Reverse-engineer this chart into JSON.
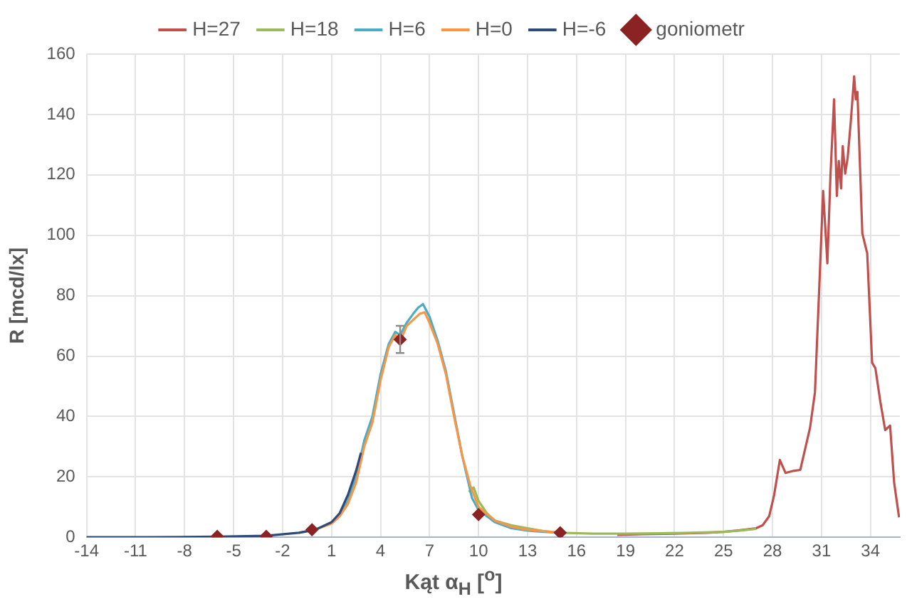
{
  "chart_data": {
    "type": "line",
    "xlabel": "Kąt α$_{H}$ [$^{o}$]",
    "ylabel": "R [mcd/lx]",
    "xlim": [
      -14,
      35.8
    ],
    "xticks": [
      -14,
      -11,
      -8,
      -5,
      -2,
      1,
      4,
      7,
      10,
      13,
      16,
      19,
      22,
      25,
      28,
      31,
      34
    ],
    "ylim": [
      0,
      160
    ],
    "yticks": [
      0,
      20,
      40,
      60,
      80,
      100,
      120,
      140,
      160
    ],
    "grid": true,
    "legend": "top",
    "marker": "none",
    "line_style": "solid",
    "series": [
      {
        "name": "H=27",
        "color": "#c0504d",
        "x": [
          18.5,
          20,
          22,
          24,
          25,
          26,
          27,
          27.4,
          27.8,
          28.1,
          28.45,
          28.8,
          29.3,
          29.7,
          30.3,
          30.6,
          30.85,
          31.1,
          31.36,
          31.55,
          31.77,
          31.94,
          32.06,
          32.2,
          32.3,
          32.45,
          32.6,
          32.8,
          33.0,
          33.1,
          33.2,
          33.5,
          33.8,
          34.1,
          34.3,
          34.6,
          34.9,
          35.2,
          35.45,
          35.75
        ],
        "values": [
          0.8,
          1,
          1.2,
          1.5,
          1.8,
          2.3,
          3,
          4,
          7,
          14,
          25.6,
          21.3,
          22,
          22.3,
          36.3,
          48,
          81,
          114.7,
          90.7,
          120,
          145,
          113,
          124.6,
          115.5,
          129.5,
          120.4,
          125.5,
          138,
          152.6,
          145,
          147.5,
          100.6,
          94,
          57.8,
          56,
          45,
          35.5,
          37,
          18,
          6.6
        ]
      },
      {
        "name": "H=18",
        "color": "#9bbb59",
        "x": [
          9.4,
          9.7,
          10,
          10.5,
          11,
          12,
          13,
          14,
          15,
          17,
          19,
          21,
          23,
          25,
          26,
          27
        ],
        "values": [
          15,
          16.5,
          12,
          8,
          5.5,
          4,
          3,
          2,
          1.5,
          1.2,
          1.2,
          1.3,
          1.5,
          1.8,
          2.2,
          2.8
        ]
      },
      {
        "name": "H=6",
        "color": "#4bacc6",
        "x": [
          1,
          1.5,
          2,
          2.5,
          3,
          3.5,
          4,
          4.5,
          4.9,
          5.2,
          5.6,
          6,
          6.3,
          6.6,
          7,
          7.5,
          8,
          8.5,
          9,
          9.3,
          9.6,
          10,
          11,
          12,
          13,
          14,
          15
        ],
        "values": [
          5,
          7.5,
          12,
          20,
          32,
          40,
          54,
          64,
          68,
          67,
          71,
          74,
          76,
          77.2,
          73,
          65,
          55,
          41,
          27,
          20,
          13,
          9,
          5,
          3,
          2.2,
          1.8,
          1.5
        ]
      },
      {
        "name": "H=0",
        "color": "#f79646",
        "x": [
          -1,
          0,
          1,
          1.5,
          2,
          2.5,
          3,
          3.5,
          4,
          4.5,
          4.9,
          5.2,
          5.6,
          6,
          6.4,
          6.7,
          7,
          7.5,
          8,
          8.5,
          9,
          9.5,
          10,
          11,
          12,
          13,
          14,
          15
        ],
        "values": [
          1.5,
          2.5,
          4.5,
          7,
          11,
          18,
          30,
          38,
          52,
          63,
          67,
          65,
          70,
          72,
          74,
          74.5,
          71,
          64,
          54,
          40,
          27,
          17,
          10,
          5.5,
          3.5,
          2.5,
          2,
          1.5
        ]
      },
      {
        "name": "H=-6",
        "color": "#2e4a7a",
        "x": [
          -14,
          -10,
          -6,
          -3,
          -1,
          0,
          1,
          1.5,
          2,
          2.5,
          2.8
        ],
        "values": [
          0,
          0,
          0.2,
          0.5,
          1.5,
          2.5,
          5,
          8,
          14,
          22,
          28
        ]
      },
      {
        "name": "goniometr",
        "type": "scatter",
        "marker": "diamond",
        "color": "#8b2323",
        "x": [
          -6,
          -3,
          -0.2,
          5.2,
          10,
          15
        ],
        "values": [
          0.3,
          0.3,
          2.5,
          65.5,
          7.5,
          1.5
        ],
        "errors": [
          null,
          null,
          null,
          4.5,
          null,
          null
        ]
      }
    ]
  }
}
